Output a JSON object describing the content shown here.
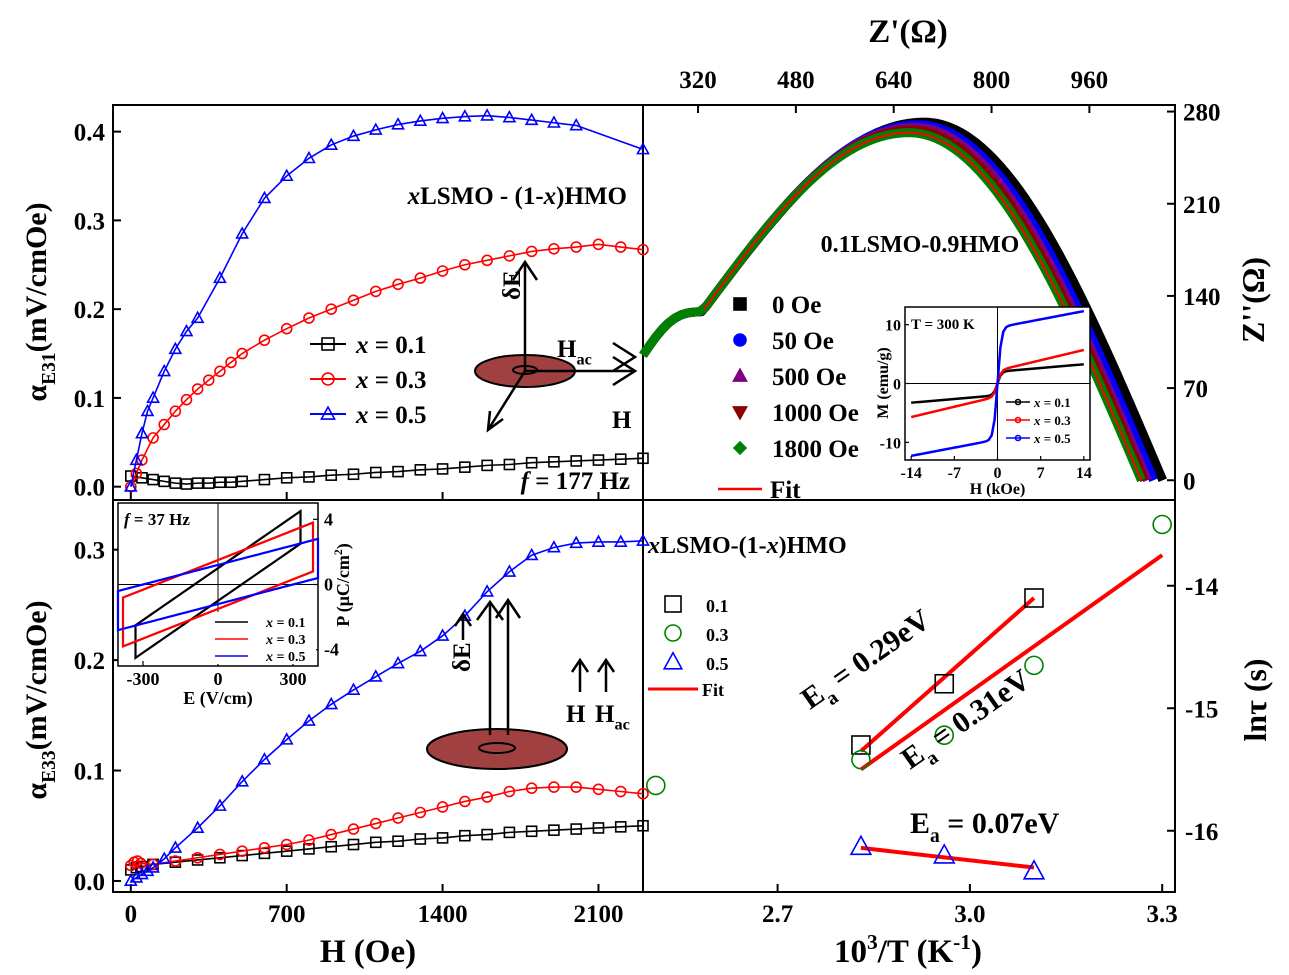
{
  "chart_data": [
    {
      "id": "a",
      "type": "line",
      "ylabel": "α",
      "ylabel_sub": "E31",
      "ylabel_unit": "(mV/cmOe)",
      "xlim": [
        -80,
        2300
      ],
      "ylim": [
        -0.015,
        0.43
      ],
      "yticks": [
        0.0,
        0.1,
        0.2,
        0.3,
        0.4
      ],
      "yticklabels": [
        "0.0",
        "0.1",
        "0.2",
        "0.3",
        "0.4"
      ],
      "compound_pre": "x",
      "compound": "LSMO - ",
      "compound_paren": "(1-",
      "compound_x2": "x",
      "compound_tail": ")HMO",
      "freq_pre": "f",
      "freq": " = 177 Hz",
      "inset_labels": {
        "dE": "δE",
        "Hac": "H",
        "Hac_sub": "ac",
        "H": "H"
      },
      "legend_position": "center-right",
      "series": [
        {
          "name": "x = 0.1",
          "label_var": "x",
          "label_val": " = 0.1",
          "color": "#000000",
          "marker": "square",
          "x": [
            0,
            50,
            100,
            150,
            200,
            250,
            300,
            350,
            400,
            450,
            500,
            600,
            700,
            800,
            900,
            1000,
            1100,
            1200,
            1300,
            1400,
            1500,
            1600,
            1700,
            1800,
            1900,
            2000,
            2100,
            2200,
            2300
          ],
          "y": [
            0.012,
            0.01,
            0.008,
            0.006,
            0.004,
            0.003,
            0.004,
            0.004,
            0.005,
            0.005,
            0.006,
            0.008,
            0.01,
            0.011,
            0.013,
            0.014,
            0.016,
            0.017,
            0.019,
            0.02,
            0.022,
            0.024,
            0.025,
            0.027,
            0.028,
            0.029,
            0.03,
            0.031,
            0.032
          ]
        },
        {
          "name": "x = 0.3",
          "label_var": "x",
          "label_val": " = 0.3",
          "color": "#ff0000",
          "marker": "circle",
          "x": [
            0,
            25,
            50,
            100,
            150,
            200,
            250,
            300,
            350,
            400,
            450,
            500,
            600,
            700,
            800,
            900,
            1000,
            1100,
            1200,
            1300,
            1400,
            1500,
            1600,
            1700,
            1800,
            1900,
            2000,
            2100,
            2200,
            2300
          ],
          "y": [
            0.0,
            0.015,
            0.03,
            0.055,
            0.07,
            0.085,
            0.098,
            0.11,
            0.12,
            0.13,
            0.14,
            0.15,
            0.165,
            0.178,
            0.19,
            0.2,
            0.21,
            0.22,
            0.228,
            0.235,
            0.243,
            0.25,
            0.255,
            0.26,
            0.265,
            0.268,
            0.27,
            0.273,
            0.27,
            0.267
          ]
        },
        {
          "name": "x = 0.5",
          "label_var": "x",
          "label_val": " = 0.5",
          "color": "#0000ff",
          "marker": "triangle",
          "x": [
            0,
            25,
            50,
            75,
            100,
            150,
            200,
            250,
            300,
            400,
            500,
            600,
            700,
            800,
            900,
            1000,
            1100,
            1200,
            1300,
            1400,
            1500,
            1600,
            1700,
            1800,
            1900,
            2000,
            2300
          ],
          "y": [
            0.0,
            0.03,
            0.06,
            0.085,
            0.1,
            0.13,
            0.155,
            0.175,
            0.19,
            0.235,
            0.285,
            0.325,
            0.35,
            0.37,
            0.385,
            0.395,
            0.402,
            0.408,
            0.412,
            0.415,
            0.417,
            0.418,
            0.416,
            0.413,
            0.41,
            0.407,
            0.38
          ]
        }
      ]
    },
    {
      "id": "b",
      "type": "line",
      "title": "Z'(Ω)",
      "ylabel": "Z''(Ω)",
      "xlim": [
        230,
        1100
      ],
      "ylim": [
        -15,
        285
      ],
      "xticks": [
        320,
        480,
        640,
        800,
        960
      ],
      "yticks": [
        0,
        70,
        140,
        210,
        280
      ],
      "sample": "0.1LSMO-0.9HMO",
      "series": [
        {
          "name": "0 Oe",
          "color": "#000000",
          "marker": "square",
          "x0": 230,
          "x1": 1080,
          "peak_x": 690,
          "peak_y": 272
        },
        {
          "name": "50 Oe",
          "color": "#0000ff",
          "marker": "circle",
          "x0": 230,
          "x1": 1065,
          "peak_x": 680,
          "peak_y": 270
        },
        {
          "name": "500 Oe",
          "color": "#800080",
          "marker": "triangle",
          "x0": 230,
          "x1": 1055,
          "peak_x": 675,
          "peak_y": 268
        },
        {
          "name": "1000 Oe",
          "color": "#8b0000",
          "marker": "triangle-down",
          "x0": 230,
          "x1": 1050,
          "peak_x": 670,
          "peak_y": 266
        },
        {
          "name": "1800 Oe",
          "color": "#008000",
          "marker": "diamond",
          "x0": 230,
          "x1": 1045,
          "peak_x": 665,
          "peak_y": 264
        }
      ],
      "fit_label": "Fit",
      "inset": {
        "title": "T = 300 K",
        "xlabel": "H (kOe)",
        "ylabel": "M (emu/g)",
        "xlim": [
          -15,
          15
        ],
        "ylim": [
          -13,
          13
        ],
        "xticks": [
          -14,
          -7,
          0,
          7,
          14
        ],
        "yticks": [
          -10,
          0,
          10
        ],
        "series": [
          {
            "name": "x = 0.1",
            "label_var": "x",
            "label_val": " = 0.1",
            "color": "#000000",
            "ms": 2.0,
            "slope": 0.09
          },
          {
            "name": "x = 0.3",
            "label_var": "x",
            "label_val": " = 0.3",
            "color": "#ff0000",
            "ms": 2.2,
            "slope": 0.25
          },
          {
            "name": "x = 0.5",
            "label_var": "x",
            "label_val": " = 0.5",
            "color": "#0000ff",
            "ms": 9.5,
            "slope": 0.2
          }
        ]
      }
    },
    {
      "id": "c",
      "type": "line",
      "ylabel": "α",
      "ylabel_sub": "E33",
      "ylabel_unit": "(mV/cmOe)",
      "xlabel": "H (Oe)",
      "xlim": [
        -80,
        2300
      ],
      "ylim": [
        -0.01,
        0.345
      ],
      "xticks": [
        0,
        700,
        1400,
        2100
      ],
      "yticks": [
        0.0,
        0.1,
        0.2,
        0.3
      ],
      "yticklabels": [
        "0.0",
        "0.1",
        "0.2",
        "0.3"
      ],
      "inset_labels": {
        "dE": "δE",
        "H": "H",
        "Hac": "H",
        "Hac_sub": "ac"
      },
      "series": [
        {
          "name": "x = 0.1",
          "color": "#000000",
          "marker": "square",
          "x": [
            0,
            25,
            50,
            100,
            200,
            300,
            400,
            500,
            600,
            700,
            800,
            900,
            1000,
            1100,
            1200,
            1300,
            1400,
            1500,
            1600,
            1700,
            1800,
            1900,
            2000,
            2100,
            2200,
            2300
          ],
          "y": [
            0.01,
            0.012,
            0.013,
            0.015,
            0.017,
            0.019,
            0.021,
            0.023,
            0.025,
            0.027,
            0.029,
            0.031,
            0.033,
            0.035,
            0.036,
            0.038,
            0.039,
            0.041,
            0.042,
            0.044,
            0.045,
            0.046,
            0.047,
            0.048,
            0.049,
            0.05
          ]
        },
        {
          "name": "x = 0.3",
          "color": "#ff0000",
          "marker": "circle",
          "x": [
            0,
            15,
            30,
            45,
            100,
            200,
            300,
            400,
            500,
            600,
            700,
            800,
            900,
            1000,
            1100,
            1200,
            1300,
            1400,
            1500,
            1600,
            1700,
            1800,
            1900,
            2000,
            2100,
            2200,
            2300
          ],
          "y": [
            0.014,
            0.017,
            0.018,
            0.016,
            0.015,
            0.018,
            0.021,
            0.024,
            0.027,
            0.03,
            0.033,
            0.037,
            0.042,
            0.047,
            0.052,
            0.057,
            0.062,
            0.067,
            0.072,
            0.076,
            0.081,
            0.084,
            0.085,
            0.085,
            0.083,
            0.081,
            0.079
          ]
        },
        {
          "name": "x = 0.5",
          "color": "#0000ff",
          "marker": "triangle",
          "x": [
            0,
            25,
            50,
            75,
            100,
            150,
            200,
            300,
            400,
            500,
            600,
            700,
            800,
            900,
            1000,
            1100,
            1200,
            1300,
            1400,
            1500,
            1600,
            1700,
            1800,
            1900,
            2000,
            2100,
            2200,
            2300
          ],
          "y": [
            0.0,
            0.003,
            0.006,
            0.009,
            0.012,
            0.02,
            0.03,
            0.048,
            0.068,
            0.09,
            0.11,
            0.128,
            0.145,
            0.16,
            0.173,
            0.185,
            0.197,
            0.208,
            0.222,
            0.24,
            0.262,
            0.28,
            0.295,
            0.302,
            0.306,
            0.307,
            0.307,
            0.308
          ]
        }
      ],
      "inset": {
        "freq_pre": "f",
        "freq": " = 37 Hz",
        "xlabel": "E (V/cm)",
        "ylabel": "P (μC/cm",
        "ylabel_sup": "2",
        "ylabel_end": ")",
        "xlim": [
          -400,
          400
        ],
        "ylim": [
          -5,
          5
        ],
        "xticks": [
          -300,
          0,
          300
        ],
        "yticks": [
          -4,
          0,
          4
        ],
        "series": [
          {
            "name": "x = 0.1",
            "label_var": "x",
            "label_val": " = 0.1",
            "color": "#000000",
            "pm": 4.5,
            "pr": 1.0,
            "em": 330
          },
          {
            "name": "x = 0.3",
            "label_var": "x",
            "label_val": " = 0.3",
            "color": "#ff0000",
            "pm": 3.8,
            "pr": 1.5,
            "em": 380
          },
          {
            "name": "x = 0.5",
            "label_var": "x",
            "label_val": " = 0.5",
            "color": "#0000ff",
            "pm": 2.8,
            "pr": 1.2,
            "em": 400
          }
        ]
      }
    },
    {
      "id": "d",
      "type": "scatter",
      "xlabel": "10",
      "xlabel_sup": "3",
      "xlabel_end": "/T (K",
      "xlabel_sup2": "-1",
      "xlabel_close": ")",
      "ylabel": "lnτ (s)",
      "xlim": [
        2.49,
        3.32
      ],
      "ylim": [
        -16.5,
        -13.3
      ],
      "xticks": [
        2.7,
        3.0,
        3.3
      ],
      "yticks": [
        -16,
        -15,
        -14
      ],
      "title_pre": "x",
      "title": "LSMO-(1-",
      "title_x2": "x",
      "title_tail": ")HMO",
      "series": [
        {
          "name": "0.1",
          "color": "#000000",
          "marker": "square",
          "x": [
            2.83,
            2.96,
            3.1
          ],
          "y": [
            -15.3,
            -14.8,
            -14.1
          ],
          "fit": [
            [
              2.83,
              -15.35
            ],
            [
              3.1,
              -14.1
            ]
          ],
          "ea_pre": "E",
          "ea_sub": "a",
          "ea_val": " = 0.29eV"
        },
        {
          "name": "0.3",
          "color": "#008000",
          "marker": "circle",
          "x": [
            2.51,
            2.83,
            2.96,
            3.1,
            3.3
          ],
          "y": [
            -15.63,
            -15.42,
            -15.22,
            -14.65,
            -13.5
          ],
          "fit": [
            [
              2.83,
              -15.5
            ],
            [
              3.3,
              -13.75
            ]
          ],
          "ea_pre": "E",
          "ea_sub": "a",
          "ea_val": " = 0.31eV"
        },
        {
          "name": "0.5",
          "color": "#0000ff",
          "marker": "triangle",
          "x": [
            2.83,
            2.96,
            3.1
          ],
          "y": [
            -16.13,
            -16.2,
            -16.33
          ],
          "fit": [
            [
              2.83,
              -16.14
            ],
            [
              3.1,
              -16.3
            ]
          ],
          "ea_pre": "E",
          "ea_sub": "a",
          "ea_val": " = 0.07eV"
        }
      ],
      "fit_label": "Fit"
    }
  ]
}
